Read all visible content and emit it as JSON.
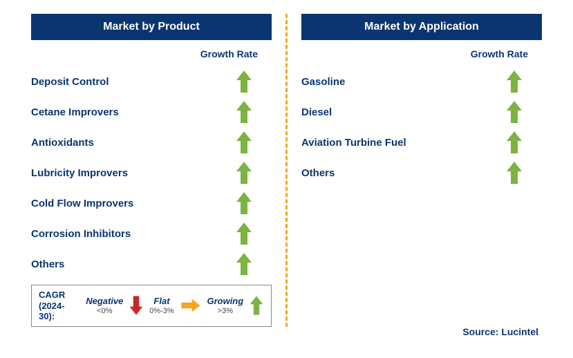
{
  "colors": {
    "header_bg": "#0a3570",
    "header_text": "#ffffff",
    "label_text": "#0a3570",
    "divider": "#f5a623",
    "arrow_up": "#7cb342",
    "arrow_down": "#c62828",
    "arrow_flat": "#f5a623",
    "background": "#ffffff",
    "legend_border": "#888888"
  },
  "typography": {
    "header_fontsize": 16,
    "label_fontsize": 15,
    "growth_label_fontsize": 14,
    "legend_fontsize": 13,
    "source_fontsize": 14
  },
  "left": {
    "title": "Market by Product",
    "growth_label": "Growth Rate",
    "items": [
      {
        "label": "Deposit Control",
        "growth": "up"
      },
      {
        "label": "Cetane Improvers",
        "growth": "up"
      },
      {
        "label": "Antioxidants",
        "growth": "up"
      },
      {
        "label": "Lubricity Improvers",
        "growth": "up"
      },
      {
        "label": "Cold Flow Improvers",
        "growth": "up"
      },
      {
        "label": "Corrosion Inhibitors",
        "growth": "up"
      },
      {
        "label": "Others",
        "growth": "up"
      }
    ]
  },
  "right": {
    "title": "Market by Application",
    "growth_label": "Growth Rate",
    "items": [
      {
        "label": "Gasoline",
        "growth": "up"
      },
      {
        "label": "Diesel",
        "growth": "up"
      },
      {
        "label": "Aviation Turbine Fuel",
        "growth": "up"
      },
      {
        "label": "Others",
        "growth": "up"
      }
    ]
  },
  "legend": {
    "title_line1": "CAGR",
    "title_line2": "(2024-30):",
    "negative_label": "Negative",
    "negative_sub": "<0%",
    "flat_label": "Flat",
    "flat_sub": "0%-3%",
    "growing_label": "Growing",
    "growing_sub": ">3%"
  },
  "source": "Source: Lucintel"
}
